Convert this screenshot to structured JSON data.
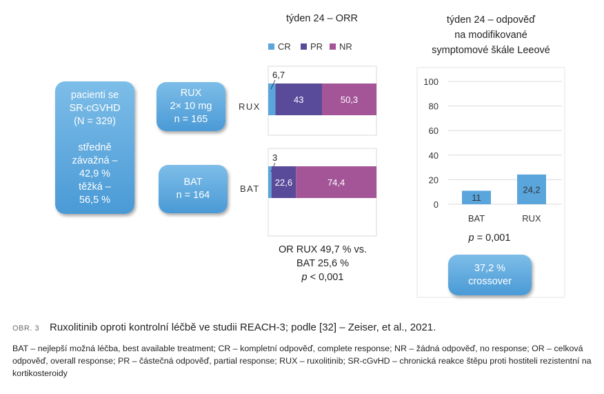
{
  "patients_box": {
    "line1": "pacienti se",
    "line2": "SR-cGVHD",
    "line3": "(N = 329)",
    "line4": "středně",
    "line5": "závažná –",
    "line6": "42,9 %",
    "line7": "těžká –",
    "line8": "56,5 %"
  },
  "rux_box": {
    "line1": "RUX",
    "line2": "2× 10 mg",
    "line3": "n = 165"
  },
  "bat_box": {
    "line1": "BAT",
    "line2": "n = 164"
  },
  "crossover_box": {
    "line1": "37,2 %",
    "line2": "crossover"
  },
  "orr_note": {
    "line1": "OR RUX 49,7 % vs.",
    "line2": "BAT 25,6 %",
    "line3_italic": "p",
    "line3_rest": " < 0,001"
  },
  "lee_note": {
    "italic": "p",
    "rest": " = 0,001"
  },
  "caption": {
    "number": "OBR. 3",
    "title": "Ruxolitinib oproti kontrolní léčbě ve studii REACH-3; podle [32] – Zeiser, et al., 2021.",
    "legend": "BAT – nejlepší možná léčba, best available treatment; CR – kompletní odpověď, complete response; NR – žádná odpověď, no response; OR – celková odpověď, overall response; PR – částečná odpověď, partial response; RUX – ruxolitinib; SR-cGvHD – chronická reakce štěpu proti hostiteli rezistentní na kortikosteroidy"
  },
  "chart_data": [
    {
      "type": "bar",
      "orientation": "horizontal-stacked",
      "title": "týden 24 – ORR",
      "categories": [
        "RUX",
        "BAT"
      ],
      "series": [
        {
          "name": "CR",
          "color": "#5aa5dc",
          "values": [
            6.7,
            3
          ]
        },
        {
          "name": "PR",
          "color": "#5a4a9a",
          "values": [
            43,
            22.6
          ]
        },
        {
          "name": "NR",
          "color": "#a35598",
          "values": [
            50.3,
            74.4
          ]
        }
      ],
      "data_labels": [
        [
          "6,7",
          "43",
          "50,3"
        ],
        [
          "3",
          "22,6",
          "74,4"
        ]
      ],
      "xlim": [
        0,
        100
      ],
      "legend": "top"
    },
    {
      "type": "bar",
      "title": "týden 24 – odpověď na modifikované symptomové škále Leeové",
      "title_lines": [
        "týden 24 – odpověď",
        "na modifikované",
        "symptomové škále Leeové"
      ],
      "categories": [
        "BAT",
        "RUX"
      ],
      "values": [
        11,
        24.2
      ],
      "data_labels": [
        "11",
        "24,2"
      ],
      "color": "#5aa5dc",
      "ylim": [
        0,
        100
      ],
      "yticks": [
        "0",
        "20",
        "40",
        "60",
        "80",
        "100"
      ],
      "grid": true
    }
  ]
}
